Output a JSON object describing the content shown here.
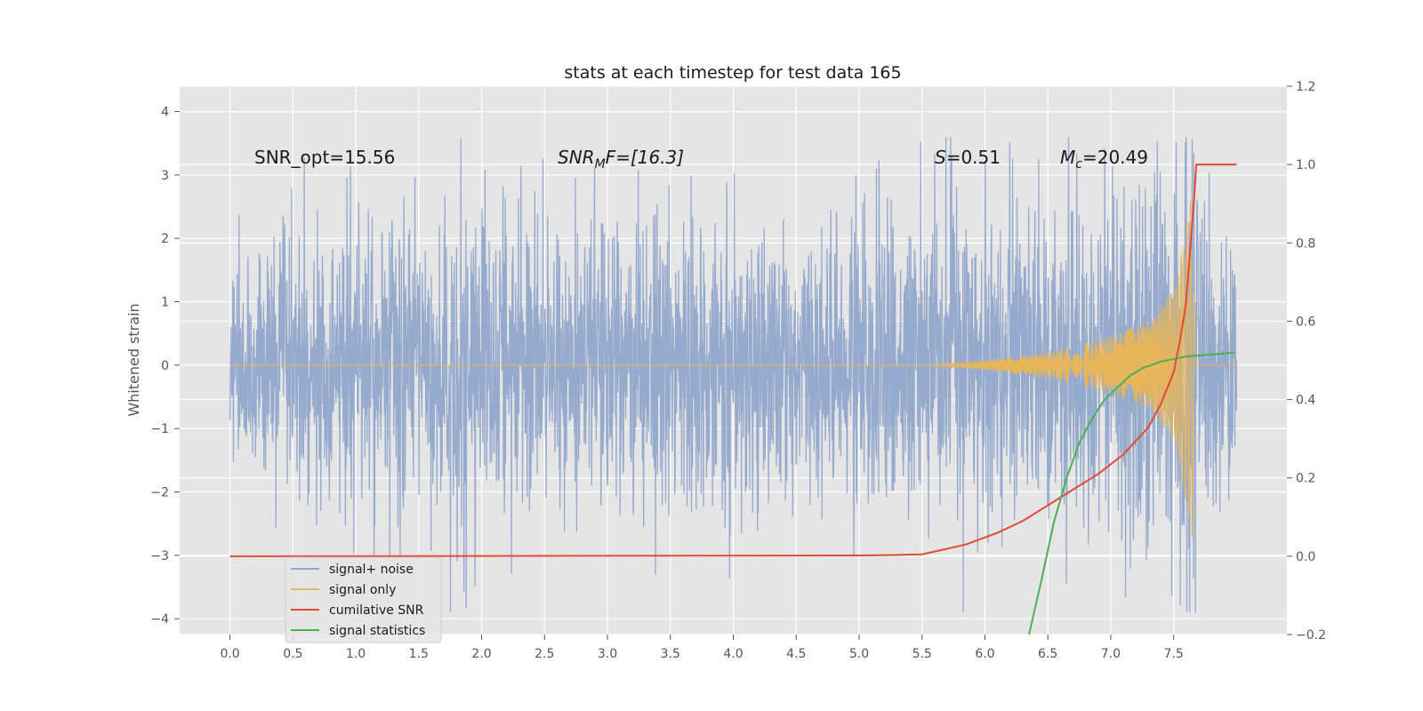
{
  "chart_data": {
    "type": "line",
    "title": "stats at each timestep for test data 165",
    "ylabel": "Whitened strain",
    "xlabel": "",
    "xlim": [
      -0.4,
      8.4
    ],
    "ylim": [
      -4.25,
      4.4
    ],
    "y2lim": [
      -0.2,
      1.2
    ],
    "x_ticks": [
      "0.0",
      "0.5",
      "1.0",
      "1.5",
      "2.0",
      "2.5",
      "3.0",
      "3.5",
      "4.0",
      "4.5",
      "5.0",
      "5.5",
      "6.0",
      "6.5",
      "7.0",
      "7.5"
    ],
    "y_ticks": [
      "4",
      "3",
      "2",
      "1",
      "0",
      "−1",
      "−2",
      "−3",
      "−4"
    ],
    "y2_ticks": [
      "1.2",
      "1.0",
      "0.8",
      "0.6",
      "0.4",
      "0.2",
      "0.0",
      "−0.2"
    ],
    "grid": true,
    "legend_position": "lower-left",
    "annotations": {
      "snr_opt": "SNR_opt=15.56",
      "snr_mf_main": "SNR",
      "snr_mf_sub": "M",
      "snr_mf_rest": "F=[16.3]",
      "s_var": "S",
      "s_val": "=0.51",
      "mc_var": "M",
      "mc_sub": "c",
      "mc_val": "=20.49"
    },
    "series": [
      {
        "name": "signal+ noise",
        "color": "#91a6cb",
        "axis": "left",
        "description_values": "noise band mostly within [-1.3, 1.3], occasional spikes to about +/-3.5",
        "x_range": [
          0.0,
          8.0
        ],
        "peak_envelope": [
          [
            0.0,
            1.5
          ],
          [
            1.0,
            2.0
          ],
          [
            2.0,
            2.2
          ],
          [
            3.0,
            2.0
          ],
          [
            4.0,
            2.1
          ],
          [
            5.0,
            2.1
          ],
          [
            6.0,
            2.2
          ],
          [
            7.0,
            2.3
          ],
          [
            7.5,
            2.5
          ],
          [
            7.6,
            3.0
          ],
          [
            7.65,
            4.0
          ],
          [
            7.7,
            2.2
          ],
          [
            8.0,
            1.8
          ]
        ]
      },
      {
        "name": "signal only",
        "color": "#e6b55c",
        "axis": "left",
        "envelope": [
          [
            0.0,
            0.0
          ],
          [
            5.5,
            0.0
          ],
          [
            6.0,
            0.07
          ],
          [
            6.5,
            0.2
          ],
          [
            7.0,
            0.45
          ],
          [
            7.3,
            0.7
          ],
          [
            7.5,
            1.2
          ],
          [
            7.6,
            2.2
          ],
          [
            7.65,
            2.8
          ],
          [
            7.67,
            0.0
          ],
          [
            8.0,
            0.0
          ]
        ]
      },
      {
        "name": "cumilative SNR",
        "color": "#e24a33",
        "axis": "right",
        "x": [
          0.0,
          5.0,
          5.3,
          5.5,
          5.6,
          5.85,
          6.1,
          6.3,
          6.5,
          6.7,
          6.9,
          7.1,
          7.3,
          7.4,
          7.5,
          7.55,
          7.6,
          7.63,
          7.66,
          7.68,
          8.0
        ],
        "y": [
          0.0,
          0.002,
          0.003,
          0.005,
          0.012,
          0.03,
          0.06,
          0.09,
          0.13,
          0.17,
          0.21,
          0.26,
          0.33,
          0.39,
          0.47,
          0.55,
          0.65,
          0.78,
          0.9,
          1.0,
          1.0
        ]
      },
      {
        "name": "signal statistics",
        "color": "#4caf50",
        "axis": "right",
        "x": [
          6.35,
          6.45,
          6.55,
          6.65,
          6.75,
          6.85,
          6.95,
          7.05,
          7.15,
          7.25,
          7.4,
          7.6,
          7.8,
          7.98
        ],
        "y": [
          -0.2,
          -0.06,
          0.09,
          0.2,
          0.29,
          0.35,
          0.4,
          0.43,
          0.46,
          0.48,
          0.497,
          0.51,
          0.515,
          0.52
        ]
      }
    ]
  }
}
